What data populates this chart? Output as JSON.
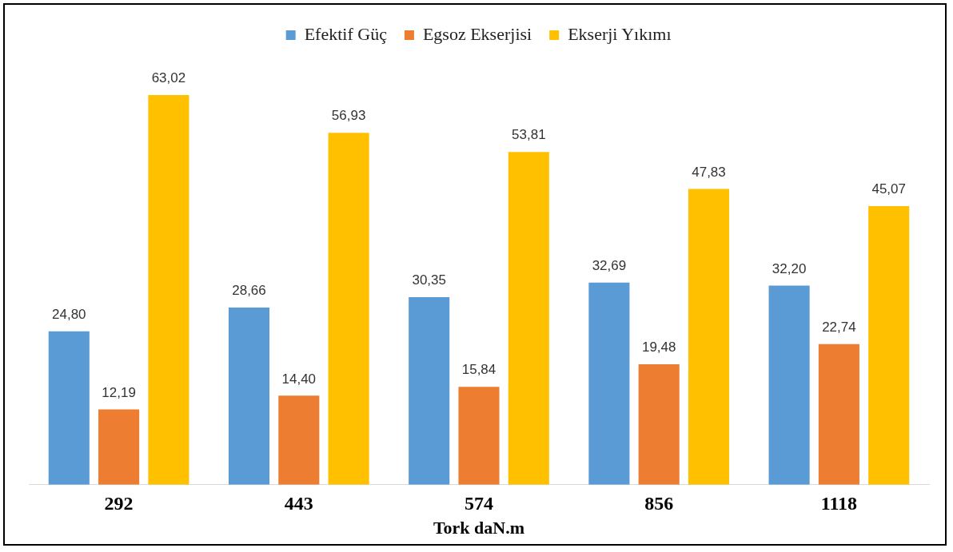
{
  "chart_data": {
    "type": "bar",
    "xlabel": "Tork daN.m",
    "categories": [
      "292",
      "443",
      "574",
      "856",
      "1118"
    ],
    "series": [
      {
        "name": "Efektif Güç",
        "color": "#5b9bd5",
        "values": [
          24.8,
          28.66,
          30.35,
          32.69,
          32.2
        ],
        "value_labels": [
          "24,80",
          "28,66",
          "30,35",
          "32,69",
          "32,20"
        ]
      },
      {
        "name": "Egsoz Ekserjisi",
        "color": "#ed7d31",
        "values": [
          12.19,
          14.4,
          15.84,
          19.48,
          22.74
        ],
        "value_labels": [
          "12,19",
          "14,40",
          "15,84",
          "19,48",
          "22,74"
        ]
      },
      {
        "name": "Ekserji Yıkımı",
        "color": "#ffc000",
        "values": [
          63.02,
          56.93,
          53.81,
          47.83,
          45.07
        ],
        "value_labels": [
          "63,02",
          "56,93",
          "53,81",
          "47,83",
          "45,07"
        ]
      }
    ],
    "legend": "top",
    "grid": false,
    "tick_labels": "x"
  }
}
